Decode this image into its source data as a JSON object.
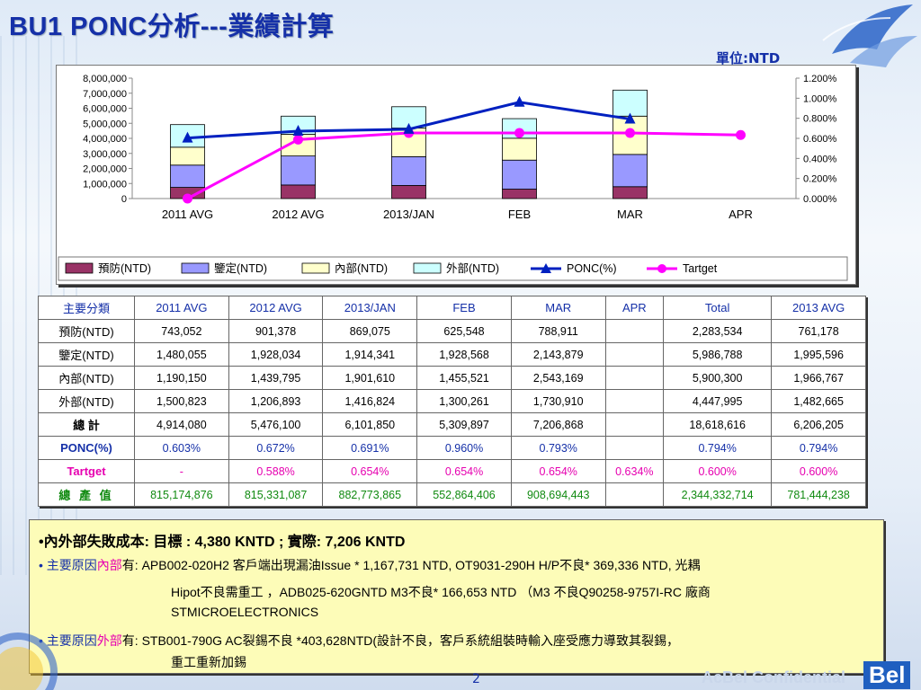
{
  "title": "BU1  PONC分析---業績計算",
  "unit_label": "單位:NTD",
  "footer": {
    "confidential": "AcBel Confidential",
    "logo": "Bel",
    "page": "2"
  },
  "colors": {
    "prevention": "#993366",
    "appraisal": "#9999ff",
    "internal": "#ffffcc",
    "external": "#ccffff",
    "ponc": "#0020c0",
    "target": "#ff00ff"
  },
  "chart_data": {
    "type": "bar",
    "stacked": true,
    "categories": [
      "2011 AVG",
      "2012 AVG",
      "2013/JAN",
      "FEB",
      "MAR",
      "APR"
    ],
    "series": [
      {
        "name": "預防(NTD)",
        "values": [
          743052,
          901378,
          869075,
          625548,
          788911,
          null
        ]
      },
      {
        "name": "鑒定(NTD)",
        "values": [
          1480055,
          1928034,
          1914341,
          1928568,
          2143879,
          null
        ]
      },
      {
        "name": "內部(NTD)",
        "values": [
          1190150,
          1439795,
          1901610,
          1455521,
          2543169,
          null
        ]
      },
      {
        "name": "外部(NTD)",
        "values": [
          1500823,
          1206893,
          1416824,
          1300261,
          1730910,
          null
        ]
      }
    ],
    "line_series": [
      {
        "name": "PONC(%)",
        "values": [
          0.603,
          0.672,
          0.691,
          0.96,
          0.793,
          null
        ],
        "axis": "right"
      },
      {
        "name": "Tartget",
        "values": [
          0.0,
          0.588,
          0.654,
          0.654,
          0.654,
          0.634
        ],
        "axis": "right"
      }
    ],
    "y_ticks": [
      "8,000,000",
      "7,000,000",
      "6,000,000",
      "5,000,000",
      "4,000,000",
      "3,000,000",
      "2,000,000",
      "1,000,000",
      "0"
    ],
    "ylim": [
      0,
      8000000
    ],
    "y2_ticks": [
      "1.200%",
      "1.000%",
      "0.800%",
      "0.600%",
      "0.400%",
      "0.200%",
      "0.000%"
    ],
    "y2lim": [
      0,
      1.2
    ],
    "legend_position": "bottom",
    "grid": false
  },
  "table": {
    "header": [
      "主要分類",
      "2011 AVG",
      "2012 AVG",
      "2013/JAN",
      "FEB",
      "MAR",
      "APR",
      "Total",
      "2013 AVG"
    ],
    "rows": [
      {
        "cls": "",
        "cells": [
          "預防(NTD)",
          "743,052",
          "901,378",
          "869,075",
          "625,548",
          "788,911",
          "",
          "2,283,534",
          "761,178"
        ]
      },
      {
        "cls": "",
        "cells": [
          "鑒定(NTD)",
          "1,480,055",
          "1,928,034",
          "1,914,341",
          "1,928,568",
          "2,143,879",
          "",
          "5,986,788",
          "1,995,596"
        ]
      },
      {
        "cls": "",
        "cells": [
          "內部(NTD)",
          "1,190,150",
          "1,439,795",
          "1,901,610",
          "1,455,521",
          "2,543,169",
          "",
          "5,900,300",
          "1,966,767"
        ]
      },
      {
        "cls": "",
        "cells": [
          "外部(NTD)",
          "1,500,823",
          "1,206,893",
          "1,416,824",
          "1,300,261",
          "1,730,910",
          "",
          "4,447,995",
          "1,482,665"
        ]
      },
      {
        "cls": "total",
        "cells": [
          "總 計",
          "4,914,080",
          "5,476,100",
          "6,101,850",
          "5,309,897",
          "7,206,868",
          "",
          "18,618,616",
          "6,206,205"
        ]
      },
      {
        "cls": "ponc",
        "cells": [
          "PONC(%)",
          "0.603%",
          "0.672%",
          "0.691%",
          "0.960%",
          "0.793%",
          "",
          "0.794%",
          "0.794%"
        ]
      },
      {
        "cls": "target",
        "cells": [
          "Tartget",
          "-",
          "0.588%",
          "0.654%",
          "0.654%",
          "0.654%",
          "0.634%",
          "0.600%",
          "0.600%"
        ]
      },
      {
        "cls": "output",
        "cells": [
          "總 產 值",
          "815,174,876",
          "815,331,087",
          "882,773,865",
          "552,864,406",
          "908,694,443",
          "",
          "2,344,332,714",
          "781,444,238"
        ]
      }
    ]
  },
  "notes": {
    "line1": "•內外部失敗成本: 目標 :  4,380  KNTD  ; 實際:  7,206  KNTD",
    "b2_prefix": "• 主要原因",
    "b2_kw": "內部",
    "b2_rest": "有: APB002-020H2 客戶端出現漏油Issue * 1,167,731 NTD, OT9031-290H H/P不良* 369,336 NTD, 光耦",
    "b2_cont1": "Hipot不良需重工 ，ADB025-620GNTD M3不良* 166,653 NTD （M3 不良Q90258-9757I-RC 廠商",
    "b2_cont2": "STMICROELECTRONICS",
    "b3_prefix": "• 主要原因",
    "b3_kw": "外部",
    "b3_rest": "有:   STB001-790G AC裂錫不良 *403,628NTD(設計不良，客戶系統組裝時輸入座受應力導致其裂錫，",
    "b3_cont1": "重工重新加錫"
  }
}
